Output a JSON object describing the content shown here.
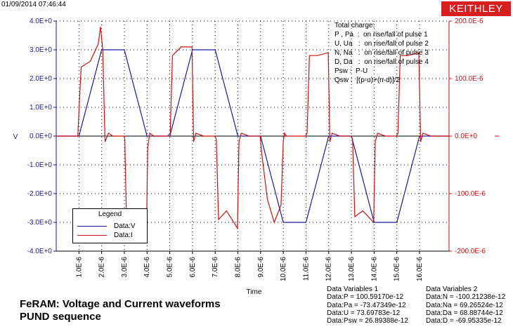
{
  "timestamp": "01/09/2014 07:46:44",
  "logo_text": "KEITHLEY",
  "colors": {
    "voltage": "#1a1aa6",
    "current": "#cc1111",
    "axis_left": "#1a1aa6",
    "axis_right": "#cc1111",
    "logo_bg": "#d81e1e"
  },
  "note_lines": [
    "Total charge:",
    "P , Pa  :  on rise/fall of pulse 1",
    "U, Ua   :  on rise/fall of pulse 2",
    "N, Na   :  on rise/fall of pulse 3",
    "D, Da   :  on rise/fall of pulse 4",
    "Psw :  P-U",
    "Qsw :  [(p-u)+(n-d)]/2"
  ],
  "title_lines": [
    "FeRAM: Voltage and Current waveforms",
    "PUND sequence"
  ],
  "data_vars_1": {
    "heading": "Data Variables 1",
    "lines": [
      "Data:P = 100.59170e-12",
      "Data:Pa = -73.47349e-12",
      "Data:U = 73.69783e-12",
      "Data:Psw = 26.89388e-12"
    ]
  },
  "data_vars_2": {
    "heading": "Data Variables 2",
    "lines": [
      "Data:N = -100.21238e-12",
      "Data:Na = 69.26524e-12",
      "Data:Da = 68.88744e-12",
      "Data:D = -69.95335e-12"
    ]
  },
  "legend": {
    "title": "Legend",
    "items": [
      "Data:V",
      "Data:I"
    ]
  },
  "chart_data": {
    "type": "line",
    "xlabel": "Time",
    "ylabel": "V",
    "x_range": [
      0,
      1.73e-05
    ],
    "y_left_range": [
      -4,
      4
    ],
    "y_right_range": [
      -0.0002,
      0.0002
    ],
    "grid": true,
    "legend_position": "bottom-left",
    "x_tick_labels": [
      "1.0E-6",
      "2.0E-6",
      "3.0E-6",
      "4.0E-6",
      "5.0E-6",
      "6.0E-6",
      "7.0E-6",
      "8.0E-6",
      "9.0E-6",
      "10.0E-6",
      "11.0E-6",
      "12.0E-6",
      "13.0E-6",
      "14.0E-6",
      "15.0E-6",
      "16.0E-6"
    ],
    "x_ticks": [
      1e-06,
      2e-06,
      3e-06,
      4e-06,
      5e-06,
      6e-06,
      7e-06,
      8e-06,
      9e-06,
      1e-05,
      1.1e-05,
      1.2e-05,
      1.3e-05,
      1.4e-05,
      1.5e-05,
      1.6e-05
    ],
    "y_left_ticks": [
      4,
      3,
      2,
      1,
      0,
      -1,
      -2,
      -3,
      -4
    ],
    "y_left_tick_labels": [
      "4.0E+0",
      "3.0E+0",
      "2.0E+0",
      "1.0E+0",
      "0.0E+0",
      "-1.0E+0",
      "-2.0E+0",
      "-3.0E+0",
      "-4.0E+0"
    ],
    "y_right_ticks": [
      0.0002,
      0.0001,
      0,
      -0.0001,
      -0.0002
    ],
    "y_right_tick_labels": [
      "200.0E-6",
      "100.0E-6",
      "0.0E+0",
      "-100.0E-6",
      "-200.0E-6"
    ],
    "series": [
      {
        "name": "Data:V",
        "axis": "left",
        "x": [
          0,
          1e-06,
          2e-06,
          3e-06,
          4e-06,
          5e-06,
          6e-06,
          7e-06,
          8e-06,
          9e-06,
          1e-05,
          1.1e-05,
          1.2e-05,
          1.3e-05,
          1.4e-05,
          1.5e-05,
          1.6e-05,
          1.73e-05
        ],
        "y": [
          0,
          0,
          3.0,
          3.0,
          0,
          0,
          3.0,
          3.0,
          0,
          0,
          -3.0,
          -3.0,
          0,
          0,
          -3.0,
          -3.0,
          0,
          0
        ]
      },
      {
        "name": "Data:I",
        "axis": "right",
        "x": [
          0,
          9.5e-07,
          1.02e-06,
          1.1e-06,
          1.5e-06,
          1.85e-06,
          1.95e-06,
          2.05e-06,
          2.15e-06,
          2.3e-06,
          2.5e-06,
          2.8e-06,
          2.98e-06,
          3.02e-06,
          3.1e-06,
          3.3e-06,
          3.7e-06,
          3.97e-06,
          4.03e-06,
          4.12e-06,
          4.3e-06,
          4.9e-06,
          5.02e-06,
          5.12e-06,
          5.5e-06,
          5.98e-06,
          6.05e-06,
          6.15e-06,
          6.5e-06,
          6.98e-06,
          7.05e-06,
          7.15e-06,
          7.5e-06,
          7.98e-06,
          8.05e-06,
          8.15e-06,
          8.5e-06,
          8.98e-06,
          9.05e-06,
          9.3e-06,
          9.6e-06,
          9.9e-06,
          1e-05,
          1.005e-05,
          1.015e-05,
          1.05e-05,
          1.098e-05,
          1.105e-05,
          1.115e-05,
          1.15e-05,
          1.198e-05,
          1.205e-05,
          1.215e-05,
          1.25e-05,
          1.298e-05,
          1.305e-05,
          1.315e-05,
          1.35e-05,
          1.398e-05,
          1.405e-05,
          1.415e-05,
          1.45e-05,
          1.498e-05,
          1.505e-05,
          1.515e-05,
          1.55e-05,
          1.597e-05,
          1.605e-05,
          1.615e-05,
          1.65e-05,
          1.73e-05
        ],
        "y": [
          0,
          0,
          6e-05,
          0.00012,
          0.00013,
          0.00016,
          0.00019,
          0.00015,
          -1e-05,
          5e-06,
          0,
          0,
          0,
          -5e-06,
          -0.00016,
          -0.00013,
          -0.00014,
          -0.000175,
          -2e-05,
          5e-06,
          0,
          0,
          5e-06,
          0.00014,
          0.000155,
          0.000155,
          -1e-05,
          5e-06,
          0,
          0,
          -5e-06,
          -0.000145,
          -0.00013,
          -0.00016,
          -1e-05,
          5e-06,
          0,
          0,
          -3e-05,
          -0.00011,
          -0.00015,
          -0.00012,
          -1e-05,
          5e-06,
          0,
          0,
          0,
          5e-06,
          0.00014,
          0.00014,
          0.000145,
          -1e-05,
          5e-06,
          0,
          0,
          -5e-06,
          -0.00014,
          -0.00013,
          -0.00015,
          -1e-05,
          5e-06,
          0,
          0,
          5e-06,
          0.00014,
          0.00014,
          0.000145,
          -1e-05,
          5e-06,
          0,
          0
        ]
      }
    ]
  }
}
